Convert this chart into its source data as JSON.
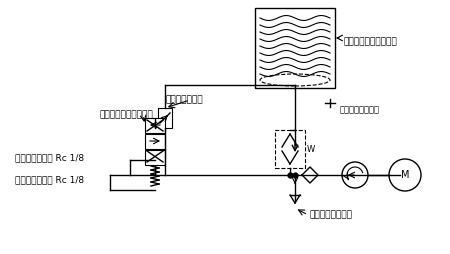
{
  "bg_color": "#ffffff",
  "line_color": "#000000",
  "text_color": "#000000",
  "labels": {
    "cartridge": "カートリッジグリース",
    "air_plug_top": "エアー抜きプラグ",
    "relief_valve": "リリーフバルブ",
    "solenoid_valve": "ソレノイド切替バルブ",
    "main_outlet": "主管脱圧吐出口 Rc 1/8",
    "pressure_outlet": "圧力進行吐出口 Rc 1/8",
    "air_plug_bottom": "エアー抜きプラグ"
  },
  "figsize": [
    4.5,
    2.54
  ],
  "dpi": 100
}
